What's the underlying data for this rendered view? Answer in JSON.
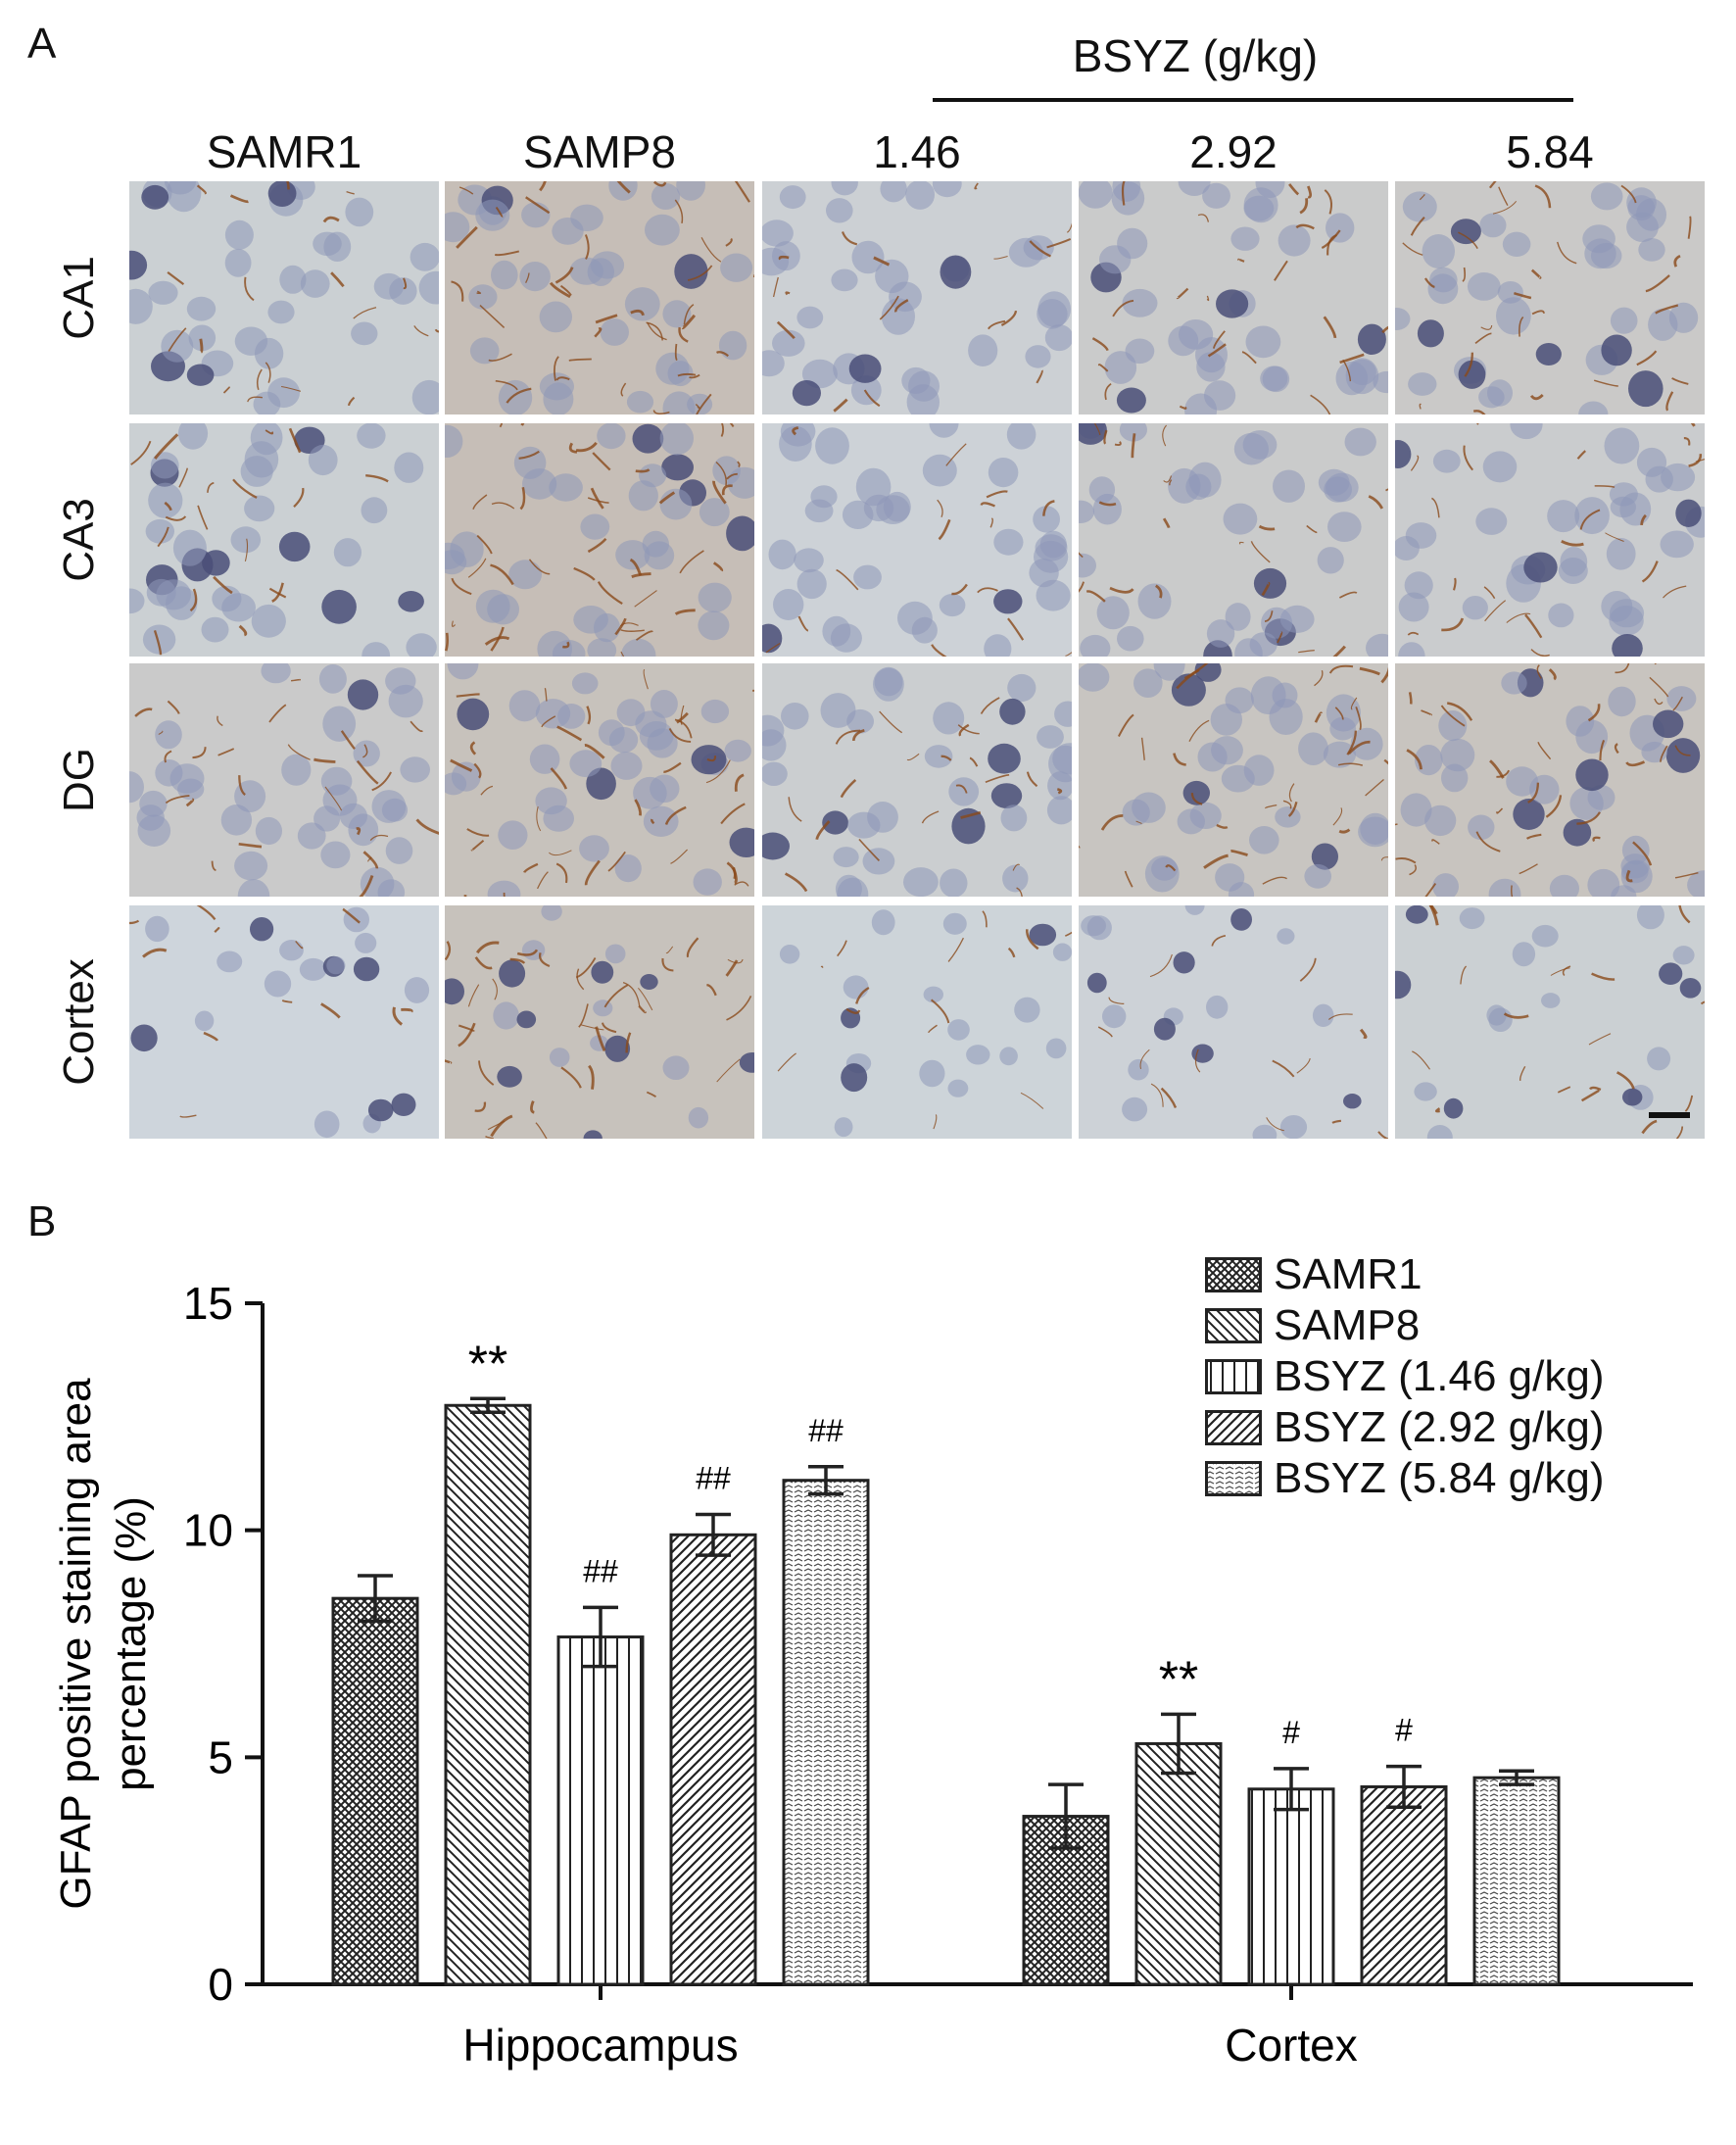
{
  "panel_a": {
    "label": "A",
    "treatment_label": "BSYZ (g/kg)",
    "columns": [
      "SAMR1",
      "SAMP8",
      "1.46",
      "2.92",
      "5.84"
    ],
    "rows": [
      "CA1",
      "CA3",
      "DG",
      "Cortex"
    ],
    "colors": {
      "background": "#cfd8e0",
      "nucleus": "#8e98b8",
      "nucleus_dark": "#4a4f78",
      "stain": "#8a4a1a"
    },
    "stain_intensity": [
      [
        0.3,
        0.9,
        0.25,
        0.45,
        0.55
      ],
      [
        0.3,
        0.9,
        0.2,
        0.45,
        0.4
      ],
      [
        0.5,
        0.8,
        0.35,
        0.7,
        0.75
      ],
      [
        0.1,
        0.8,
        0.15,
        0.2,
        0.3
      ]
    ]
  },
  "panel_b": {
    "label": "B",
    "chart_data": {
      "type": "bar",
      "categories": [
        "Hippocampus",
        "Cortex"
      ],
      "ylabel": "GFAP positive staining area percentage (%)",
      "ylabel_lines": [
        "GFAP positive staining area",
        "percentage (%)"
      ],
      "ylim": [
        0,
        15
      ],
      "yticks": [
        0,
        5,
        10,
        15
      ],
      "legend_position": "top-right",
      "series": [
        {
          "name": "SAMR1",
          "values": [
            8.5,
            3.7
          ],
          "errors": [
            0.5,
            0.7
          ],
          "annotations": [
            "",
            ""
          ],
          "pattern": "crosshatch"
        },
        {
          "name": "SAMP8",
          "values": [
            12.75,
            5.3
          ],
          "errors": [
            0.15,
            0.65
          ],
          "annotations": [
            "**",
            "**"
          ],
          "pattern": "diag-back"
        },
        {
          "name": "BSYZ (1.46 g/kg)",
          "values": [
            7.65,
            4.3
          ],
          "errors": [
            0.65,
            0.45
          ],
          "annotations": [
            "##",
            "#"
          ],
          "pattern": "vertical"
        },
        {
          "name": "BSYZ (2.92 g/kg)",
          "values": [
            9.9,
            4.35
          ],
          "errors": [
            0.45,
            0.45
          ],
          "annotations": [
            "##",
            "#"
          ],
          "pattern": "diag-fwd"
        },
        {
          "name": "BSYZ (5.84 g/kg)",
          "values": [
            11.1,
            4.55
          ],
          "errors": [
            0.3,
            0.15
          ],
          "annotations": [
            "##",
            ""
          ],
          "pattern": "dots"
        }
      ]
    }
  }
}
